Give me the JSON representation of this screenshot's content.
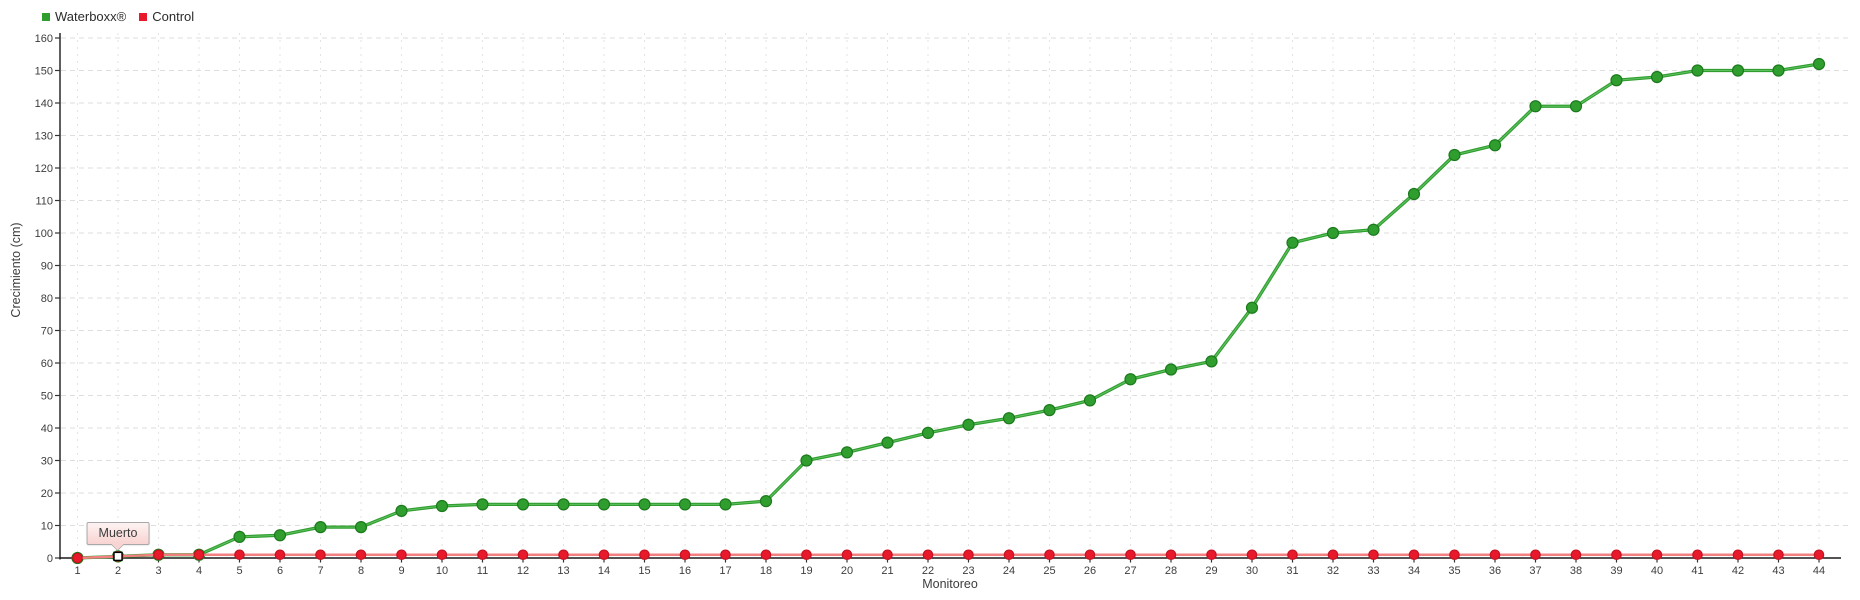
{
  "legend": {
    "items": [
      {
        "label": "Waterboxx®",
        "color": "#2f9e2f"
      },
      {
        "label": "Control",
        "color": "#e8192b"
      }
    ]
  },
  "chart_data": {
    "type": "line",
    "title": "",
    "xlabel": "Monitoreo",
    "ylabel": "Crecimiento (cm)",
    "ylim": [
      0,
      160
    ],
    "yticks": [
      0,
      10,
      20,
      30,
      40,
      50,
      60,
      70,
      80,
      90,
      100,
      110,
      120,
      130,
      140,
      150,
      160
    ],
    "grid": true,
    "legend_position": "top-left",
    "x": [
      1,
      2,
      3,
      4,
      5,
      6,
      7,
      8,
      9,
      10,
      11,
      12,
      13,
      14,
      15,
      16,
      17,
      18,
      19,
      20,
      21,
      22,
      23,
      24,
      25,
      26,
      27,
      28,
      29,
      30,
      31,
      32,
      33,
      34,
      35,
      36,
      37,
      38,
      39,
      40,
      41,
      42,
      43,
      44
    ],
    "series": [
      {
        "name": "Waterboxx®",
        "color": "#2f9e2f",
        "line_color": "#2f9e2f",
        "highlight_color": "#5fc05f",
        "bullet_stroke": "#1c7a1c",
        "values": [
          0,
          0.5,
          1,
          1,
          6.5,
          7,
          9.5,
          9.5,
          14.5,
          16,
          16.5,
          16.5,
          16.5,
          16.5,
          16.5,
          16.5,
          16.5,
          17.5,
          30,
          32.5,
          35.5,
          38.5,
          41,
          43,
          45.5,
          48.5,
          55,
          58,
          60.5,
          77,
          97,
          100,
          101,
          112,
          124,
          127,
          139,
          139,
          147,
          148,
          150,
          150,
          150,
          152
        ]
      },
      {
        "name": "Control",
        "color": "#e8192b",
        "line_color": "#f28080",
        "bullet_stroke": "#c51322",
        "values": [
          0,
          0.5,
          1,
          1,
          1,
          1,
          1,
          1,
          1,
          1,
          1,
          1,
          1,
          1,
          1,
          1,
          1,
          1,
          1,
          1,
          1,
          1,
          1,
          1,
          1,
          1,
          1,
          1,
          1,
          1,
          1,
          1,
          1,
          1,
          1,
          1,
          1,
          1,
          1,
          1,
          1,
          1,
          1,
          1
        ]
      }
    ],
    "tooltip": {
      "text": "Muerto",
      "x": 2,
      "y": 0.5
    }
  }
}
